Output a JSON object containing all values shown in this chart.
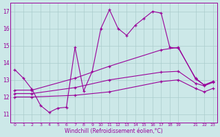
{
  "background_color": "#cce8e8",
  "grid_color": "#aacccc",
  "line_color": "#990099",
  "xlim": [
    -0.5,
    23.5
  ],
  "ylim": [
    10.5,
    17.5
  ],
  "xticks": [
    0,
    1,
    2,
    3,
    4,
    5,
    6,
    7,
    8,
    9,
    10,
    11,
    12,
    13,
    14,
    15,
    16,
    17,
    18,
    19,
    21,
    22,
    23
  ],
  "yticks": [
    11,
    12,
    13,
    14,
    15,
    16,
    17
  ],
  "xlabel": "Windchill (Refroidissement éolien,°C)",
  "series": [
    {
      "x": [
        0,
        1,
        2,
        3,
        4,
        5,
        6,
        7,
        8,
        9,
        10,
        11,
        12,
        13,
        14,
        15,
        16,
        17,
        18,
        19,
        21,
        22,
        23
      ],
      "y": [
        13.6,
        13.1,
        12.45,
        11.5,
        11.1,
        11.35,
        11.4,
        14.9,
        12.35,
        13.5,
        16.0,
        17.1,
        16.0,
        15.6,
        16.2,
        16.6,
        17.0,
        16.9,
        14.9,
        14.85,
        13.1,
        12.7,
        12.9
      ],
      "marker": "+"
    },
    {
      "x": [
        0,
        2,
        7,
        11,
        17,
        19,
        21,
        22,
        23
      ],
      "y": [
        12.4,
        12.4,
        13.1,
        13.8,
        14.75,
        14.9,
        13.05,
        12.7,
        12.9
      ],
      "marker": "+"
    },
    {
      "x": [
        0,
        2,
        7,
        11,
        17,
        19,
        21,
        22,
        23
      ],
      "y": [
        12.2,
        12.2,
        12.55,
        13.0,
        13.45,
        13.5,
        12.8,
        12.65,
        12.85
      ],
      "marker": "+"
    },
    {
      "x": [
        0,
        2,
        7,
        11,
        17,
        19,
        21,
        22,
        23
      ],
      "y": [
        12.0,
        12.0,
        12.1,
        12.3,
        12.9,
        13.0,
        12.5,
        12.3,
        12.5
      ],
      "marker": "+"
    }
  ]
}
